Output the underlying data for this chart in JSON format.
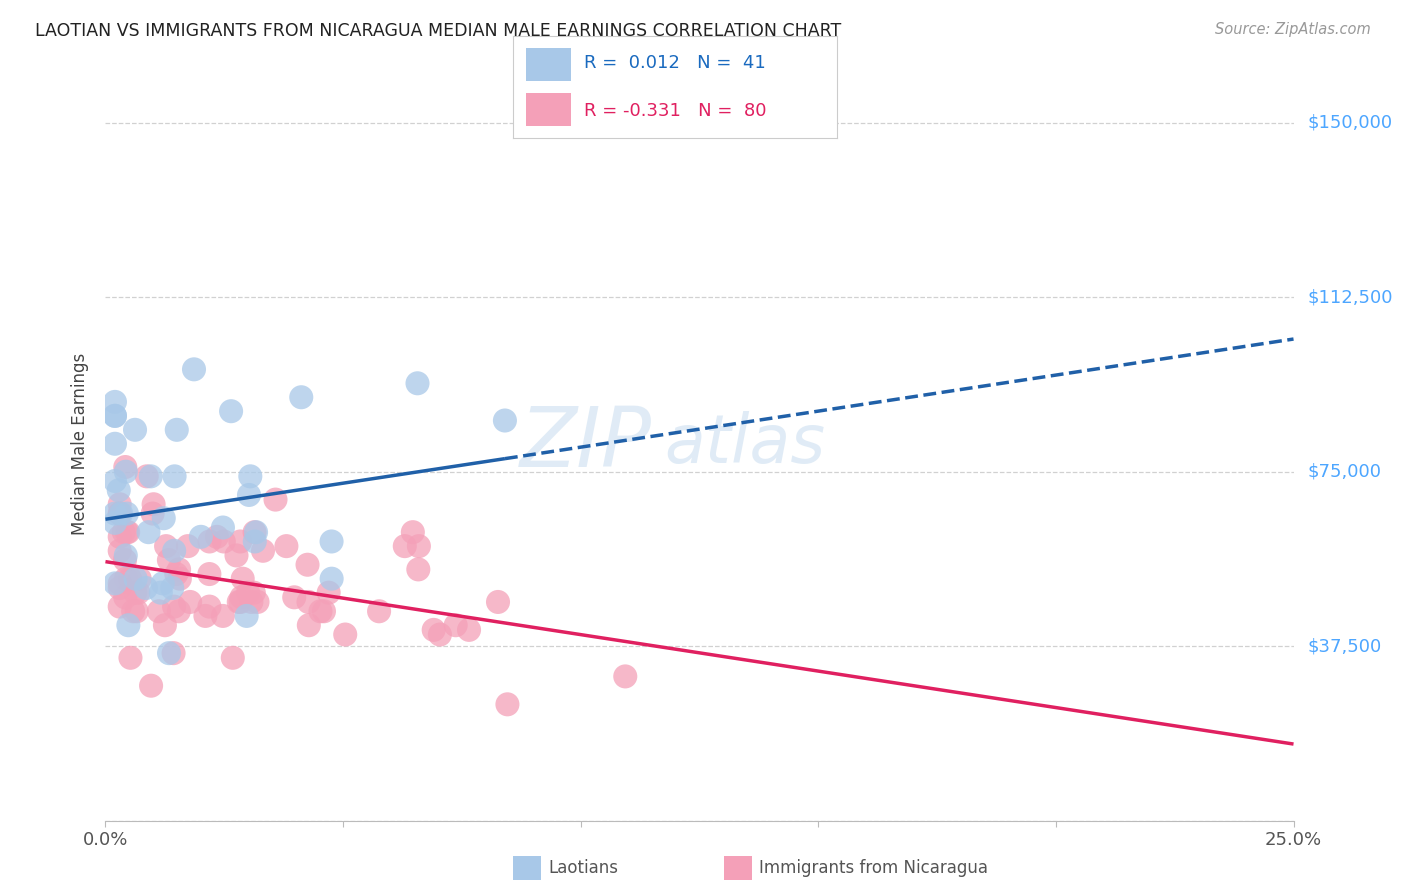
{
  "title": "LAOTIAN VS IMMIGRANTS FROM NICARAGUA MEDIAN MALE EARNINGS CORRELATION CHART",
  "source": "Source: ZipAtlas.com",
  "ylabel": "Median Male Earnings",
  "yticks": [
    0,
    37500,
    75000,
    112500,
    150000
  ],
  "ytick_labels": [
    "",
    "$37,500",
    "$75,000",
    "$112,500",
    "$150,000"
  ],
  "xlim": [
    0.0,
    0.25
  ],
  "ylim": [
    0,
    162000
  ],
  "legend1_r": "0.012",
  "legend1_n": "41",
  "legend2_r": "-0.331",
  "legend2_n": "80",
  "blue_color": "#a8c8e8",
  "pink_color": "#f4a0b8",
  "blue_line_color": "#2060a8",
  "pink_line_color": "#e02060",
  "watermark_color": "#ccdff0",
  "grid_color": "#cccccc",
  "title_color": "#222222",
  "source_color": "#999999",
  "axis_label_color": "#444444",
  "tick_color": "#555555",
  "right_tick_color": "#4da6ff"
}
